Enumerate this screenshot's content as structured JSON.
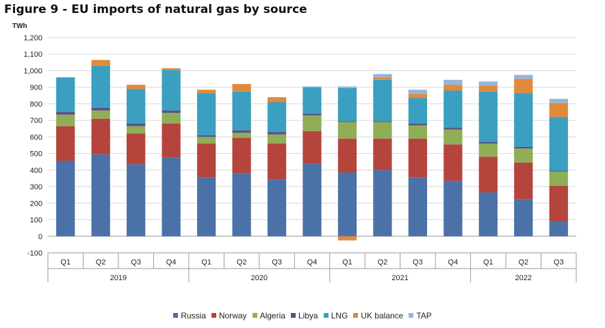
{
  "figure": {
    "title": "Figure 9 - EU imports of natural gas by source"
  },
  "chart_data": {
    "type": "stacked-bar",
    "title": "Figure 9 - EU imports of natural gas by source",
    "ylabel": "TWh",
    "ylim": [
      -100,
      1200
    ],
    "yticks": [
      -100,
      0,
      100,
      200,
      300,
      400,
      500,
      600,
      700,
      800,
      900,
      1000,
      1100,
      1200
    ],
    "ytick_labels": [
      "-100",
      "0",
      "100",
      "200",
      "300",
      "400",
      "500",
      "600",
      "700",
      "800",
      "900",
      "1,000",
      "1,100",
      "1,200"
    ],
    "grid": true,
    "legend_position": "bottom",
    "categories": [
      "Q1",
      "Q2",
      "Q3",
      "Q4",
      "Q1",
      "Q2",
      "Q3",
      "Q4",
      "Q1",
      "Q2",
      "Q3",
      "Q4",
      "Q1",
      "Q2",
      "Q3"
    ],
    "groups": [
      {
        "label": "2019",
        "count": 4
      },
      {
        "label": "2020",
        "count": 4
      },
      {
        "label": "2021",
        "count": 4
      },
      {
        "label": "2022",
        "count": 3
      }
    ],
    "series": [
      {
        "name": "Russia",
        "color": "#4a72a8",
        "values": [
          455,
          495,
          435,
          475,
          355,
          380,
          345,
          440,
          385,
          400,
          355,
          335,
          265,
          225,
          90
        ]
      },
      {
        "name": "Norway",
        "color": "#b5443d",
        "values": [
          210,
          215,
          185,
          205,
          205,
          215,
          215,
          195,
          205,
          190,
          235,
          220,
          215,
          220,
          215
        ]
      },
      {
        "name": "Algeria",
        "color": "#8fae55",
        "values": [
          70,
          50,
          45,
          65,
          40,
          30,
          55,
          95,
          100,
          100,
          80,
          90,
          80,
          85,
          85
        ]
      },
      {
        "name": "Libya",
        "color": "#5b4f8a",
        "values": [
          15,
          15,
          15,
          15,
          10,
          15,
          15,
          10,
          5,
          5,
          10,
          10,
          10,
          10,
          5
        ]
      },
      {
        "name": "LNG",
        "color": "#3a9fc0",
        "values": [
          210,
          255,
          210,
          245,
          255,
          235,
          180,
          160,
          200,
          250,
          155,
          225,
          305,
          325,
          325
        ]
      },
      {
        "name": "UK balance",
        "color": "#e08b3c",
        "values": [
          0,
          35,
          25,
          10,
          20,
          45,
          30,
          0,
          -25,
          15,
          25,
          35,
          35,
          85,
          85
        ]
      },
      {
        "name": "TAP",
        "color": "#98b4d8",
        "values": [
          0,
          0,
          0,
          0,
          0,
          0,
          0,
          5,
          10,
          20,
          25,
          30,
          25,
          25,
          25
        ]
      }
    ]
  }
}
